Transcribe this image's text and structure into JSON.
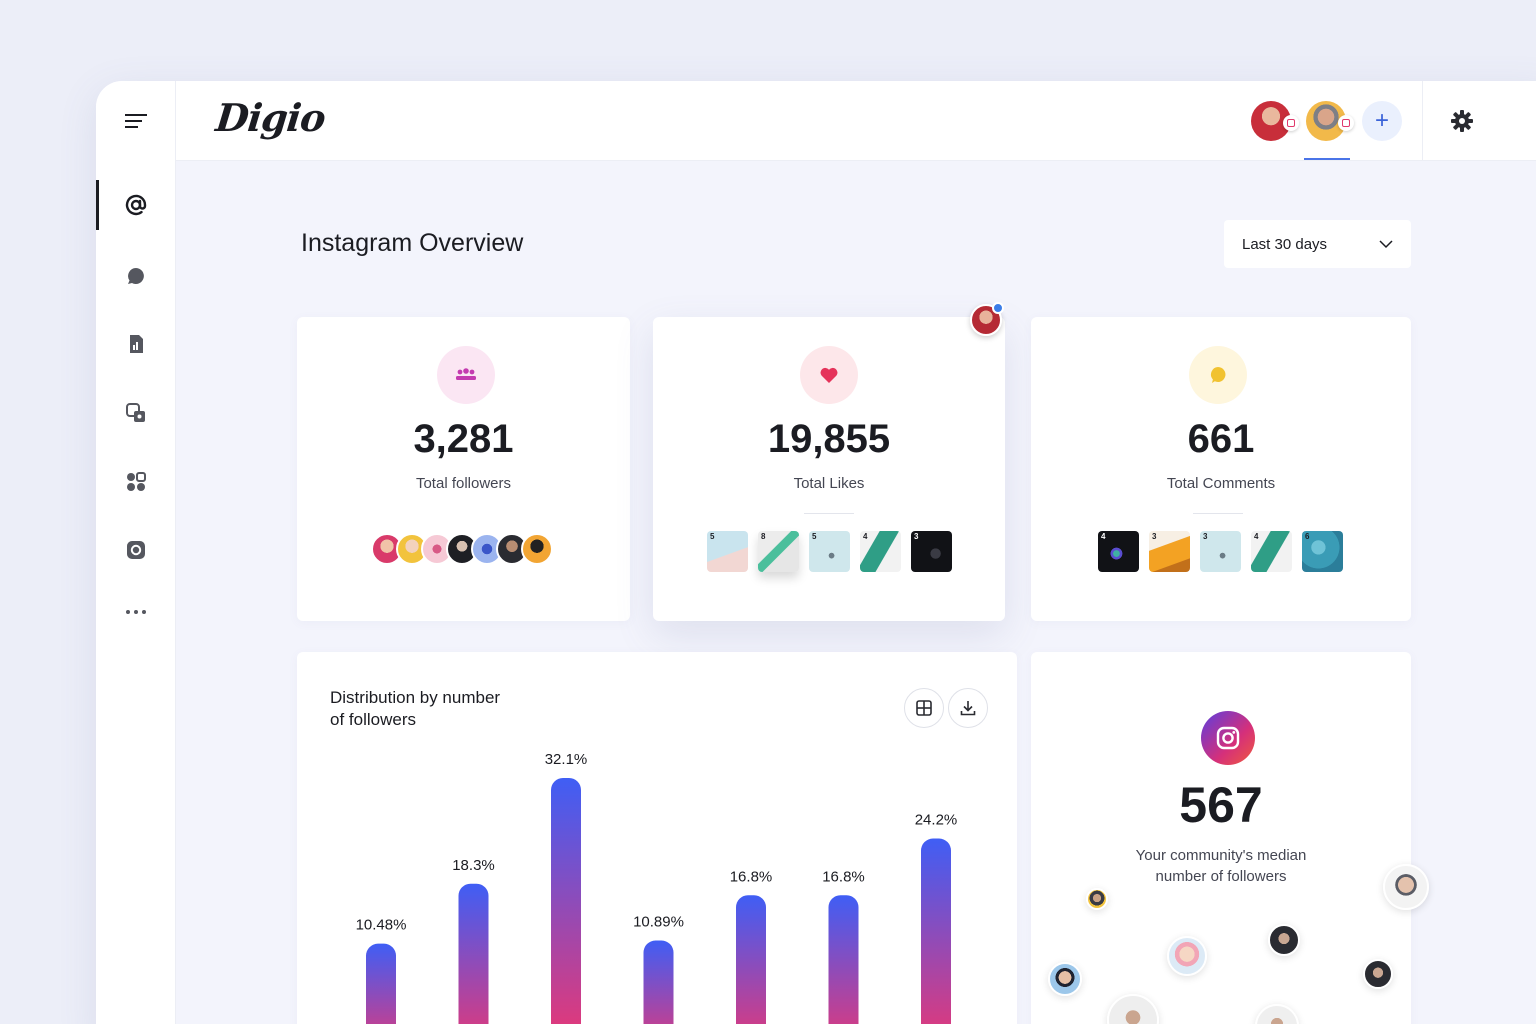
{
  "app": {
    "logo": "Digio"
  },
  "sidebar": {
    "items": [
      {
        "icon": "at-sign-icon",
        "active": true
      },
      {
        "icon": "chat-bubble-icon",
        "active": false
      },
      {
        "icon": "report-document-icon",
        "active": false
      },
      {
        "icon": "media-gallery-icon",
        "active": false
      },
      {
        "icon": "apps-grid-icon",
        "active": false
      },
      {
        "icon": "instagram-icon",
        "active": false
      },
      {
        "icon": "more-dots-icon",
        "active": false
      }
    ]
  },
  "header": {
    "accounts": [
      {
        "icon": "account-avatar-1",
        "selected": false
      },
      {
        "icon": "account-avatar-2",
        "selected": true
      }
    ],
    "add_icon": "plus-icon",
    "add_label": "+",
    "settings_icon": "gear-icon"
  },
  "page": {
    "title": "Instagram Overview",
    "date_range": "Last 30 days"
  },
  "stats": [
    {
      "value": "3,281",
      "label": "Total followers",
      "icon": "people-icon",
      "icon_color": "#c43bb0",
      "icon_bg": "#fbe6f3"
    },
    {
      "value": "19,855",
      "label": "Total Likes",
      "icon": "heart-icon",
      "icon_color": "#e5335a",
      "icon_bg": "#fde7ea"
    },
    {
      "value": "661",
      "label": "Total Comments",
      "icon": "comment-icon",
      "icon_color": "#f1c230",
      "icon_bg": "#fef6dd"
    }
  ],
  "likes_thumbs": [
    "5",
    "8",
    "5",
    "4",
    "3"
  ],
  "comments_thumbs": [
    "4",
    "3",
    "3",
    "4",
    "6"
  ],
  "distribution": {
    "title_line1": "Distribution by number",
    "title_line2": "of followers",
    "table_icon": "table-view-icon",
    "download_icon": "download-icon"
  },
  "chart_data": {
    "type": "bar",
    "title": "Distribution by number of followers",
    "categories": [
      "",
      "",
      "",
      "",
      "",
      "",
      ""
    ],
    "values": [
      10.48,
      18.3,
      32.1,
      10.89,
      16.8,
      16.8,
      24.2
    ],
    "value_labels": [
      "10.48%",
      "18.3%",
      "32.1%",
      "10.89%",
      "16.8%",
      "16.8%",
      "24.2%"
    ],
    "bar_gradient": [
      "#3f5ef5",
      "#f5346b"
    ],
    "grid": false
  },
  "median": {
    "icon": "instagram-icon",
    "value": "567",
    "label": "Your community's median number of followers"
  }
}
